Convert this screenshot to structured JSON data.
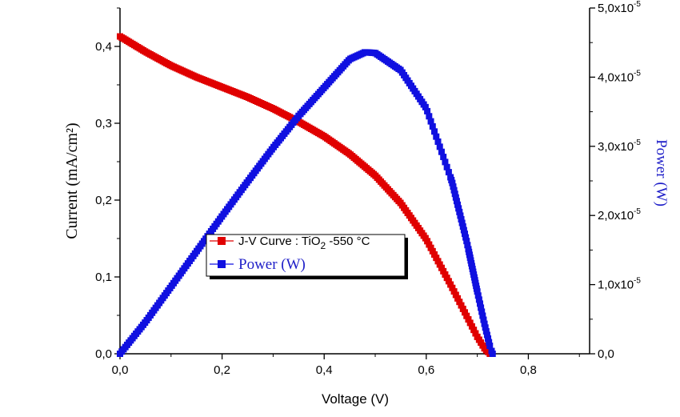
{
  "chart_data": {
    "type": "scatter",
    "title": "",
    "xlabel": "Voltage (V)",
    "ylabel_left": "Current  (mA/cm²)",
    "ylabel_right": "Power  (W)",
    "xlim": [
      0,
      0.92
    ],
    "ylim_left": [
      0,
      0.45
    ],
    "ylim_right": [
      0,
      5e-05
    ],
    "x_ticks": [
      0,
      0.2,
      0.4,
      0.6,
      0.8
    ],
    "x_tick_labels": [
      "0,0",
      "0,2",
      "0,4",
      "0,6",
      "0,8"
    ],
    "y_left_ticks": [
      0,
      0.1,
      0.2,
      0.3,
      0.4
    ],
    "y_left_tick_labels": [
      "0,0",
      "0,1",
      "0,2",
      "0,3",
      "0,4"
    ],
    "y_right_ticks": [
      0,
      1e-05,
      2e-05,
      3e-05,
      4e-05,
      5e-05
    ],
    "y_right_tick_labels": [
      {
        "base": "0,0",
        "exp": ""
      },
      {
        "base": "1,0x10",
        "exp": "-5"
      },
      {
        "base": "2,0x10",
        "exp": "-5"
      },
      {
        "base": "3,0x10",
        "exp": "-5"
      },
      {
        "base": "4,0x10",
        "exp": "-5"
      },
      {
        "base": "5,0x10",
        "exp": "-5"
      }
    ],
    "grid": false,
    "legend_position": "center-left",
    "series": [
      {
        "name": "J-V Curve : TiO₂ -550 °C",
        "name_parts": [
          "J-V Curve : TiO",
          "2",
          " -550 °C"
        ],
        "axis": "left",
        "color": "#e00000",
        "marker": "square",
        "x": [
          0.0,
          0.02,
          0.05,
          0.1,
          0.15,
          0.2,
          0.25,
          0.3,
          0.35,
          0.4,
          0.45,
          0.5,
          0.55,
          0.6,
          0.65,
          0.68,
          0.7,
          0.715,
          0.725
        ],
        "y": [
          0.413,
          0.405,
          0.393,
          0.375,
          0.36,
          0.347,
          0.334,
          0.319,
          0.302,
          0.283,
          0.26,
          0.232,
          0.196,
          0.149,
          0.087,
          0.048,
          0.022,
          0.006,
          0.0
        ]
      },
      {
        "name": "Power (W)",
        "axis": "right",
        "color": "#1010e0",
        "marker": "square",
        "x": [
          0.0,
          0.05,
          0.1,
          0.15,
          0.2,
          0.25,
          0.3,
          0.35,
          0.4,
          0.45,
          0.48,
          0.5,
          0.55,
          0.6,
          0.65,
          0.68,
          0.7,
          0.715,
          0.725,
          0.73
        ],
        "y": [
          0.0,
          4.6e-06,
          9.7e-06,
          1.48e-05,
          1.99e-05,
          2.49e-05,
          2.98e-05,
          3.44e-05,
          3.85e-05,
          4.26e-05,
          4.36e-05,
          4.35e-05,
          4.1e-05,
          3.55e-05,
          2.5e-05,
          1.6e-05,
          9e-06,
          4e-06,
          1e-06,
          0.0
        ]
      }
    ]
  }
}
